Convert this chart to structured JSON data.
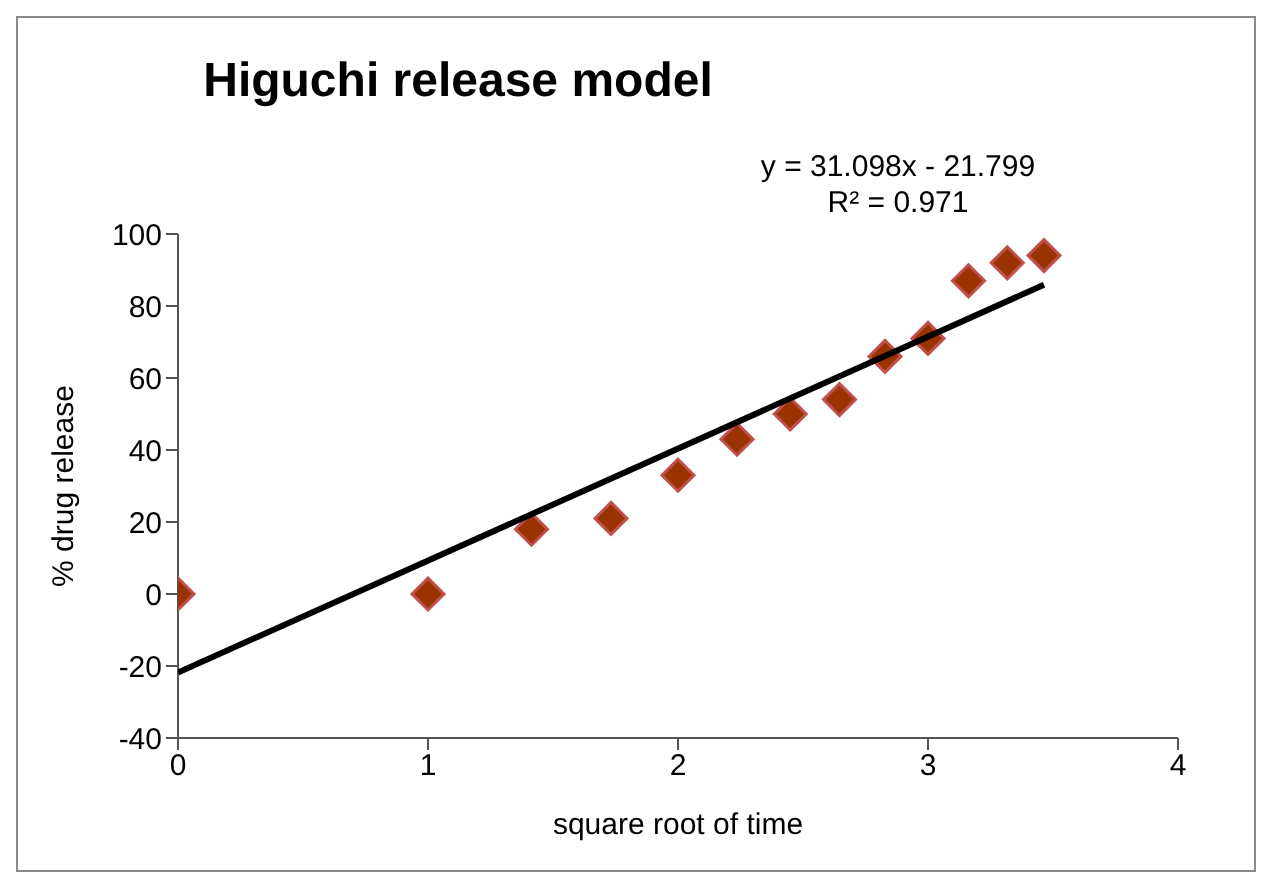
{
  "chart_data": {
    "type": "scatter",
    "title": "Higuchi release model",
    "xlabel": "square root of time",
    "ylabel": "% drug release",
    "annotations": [
      "y = 31.098x - 21.799",
      "R² = 0.971"
    ],
    "xlim": [
      0,
      4
    ],
    "xticks": [
      0,
      1,
      2,
      3,
      4
    ],
    "ylim": [
      -40,
      100
    ],
    "yticks": [
      -40,
      -20,
      0,
      20,
      40,
      60,
      80,
      100
    ],
    "grid": false,
    "legend": false,
    "series": [
      {
        "color": "#993300",
        "marker": "diamond",
        "x": [
          0,
          1,
          1.414,
          1.732,
          2,
          2.236,
          2.449,
          2.646,
          2.828,
          3,
          3.162,
          3.317,
          3.464
        ],
        "values": [
          0,
          0,
          18,
          21,
          33,
          43,
          50,
          54,
          66,
          71,
          87,
          92,
          94
        ]
      },
      {
        "type": "line",
        "color": "#000000",
        "marker": "none",
        "line_style": "solid",
        "x": [
          0,
          3.464
        ],
        "values": [
          -21.8,
          85.9
        ]
      }
    ]
  }
}
